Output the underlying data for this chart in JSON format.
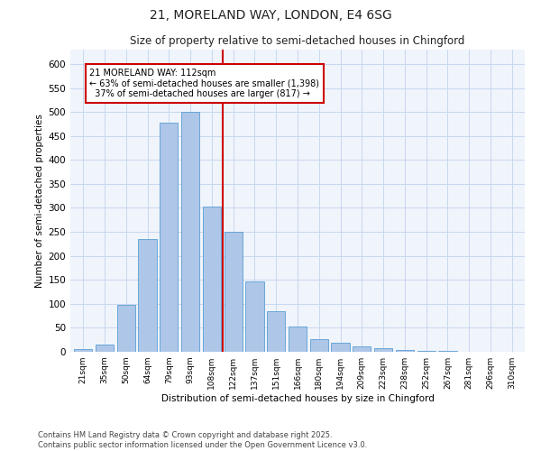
{
  "title1": "21, MORELAND WAY, LONDON, E4 6SG",
  "title2": "Size of property relative to semi-detached houses in Chingford",
  "xlabel": "Distribution of semi-detached houses by size in Chingford",
  "ylabel": "Number of semi-detached properties",
  "categories": [
    "21sqm",
    "35sqm",
    "50sqm",
    "64sqm",
    "79sqm",
    "93sqm",
    "108sqm",
    "122sqm",
    "137sqm",
    "151sqm",
    "166sqm",
    "180sqm",
    "194sqm",
    "209sqm",
    "223sqm",
    "238sqm",
    "252sqm",
    "267sqm",
    "281sqm",
    "296sqm",
    "310sqm"
  ],
  "values": [
    5,
    15,
    97,
    235,
    478,
    500,
    303,
    250,
    147,
    85,
    52,
    27,
    18,
    12,
    8,
    4,
    2,
    1,
    0,
    0,
    0
  ],
  "bar_color": "#aec6e8",
  "bar_edge_color": "#5a9fd4",
  "vline_x": 6.5,
  "vline_color": "#cc0000",
  "annotation_title": "21 MORELAND WAY: 112sqm",
  "annotation_line1": "← 63% of semi-detached houses are smaller (1,398)",
  "annotation_line2": "  37% of semi-detached houses are larger (817) →",
  "annotation_box_color": "#cc0000",
  "ylim": [
    0,
    630
  ],
  "yticks": [
    0,
    50,
    100,
    150,
    200,
    250,
    300,
    350,
    400,
    450,
    500,
    550,
    600
  ],
  "footer": "Contains HM Land Registry data © Crown copyright and database right 2025.\nContains public sector information licensed under the Open Government Licence v3.0.",
  "bg_color": "#f0f4fb",
  "grid_color": "#c8d8f0"
}
